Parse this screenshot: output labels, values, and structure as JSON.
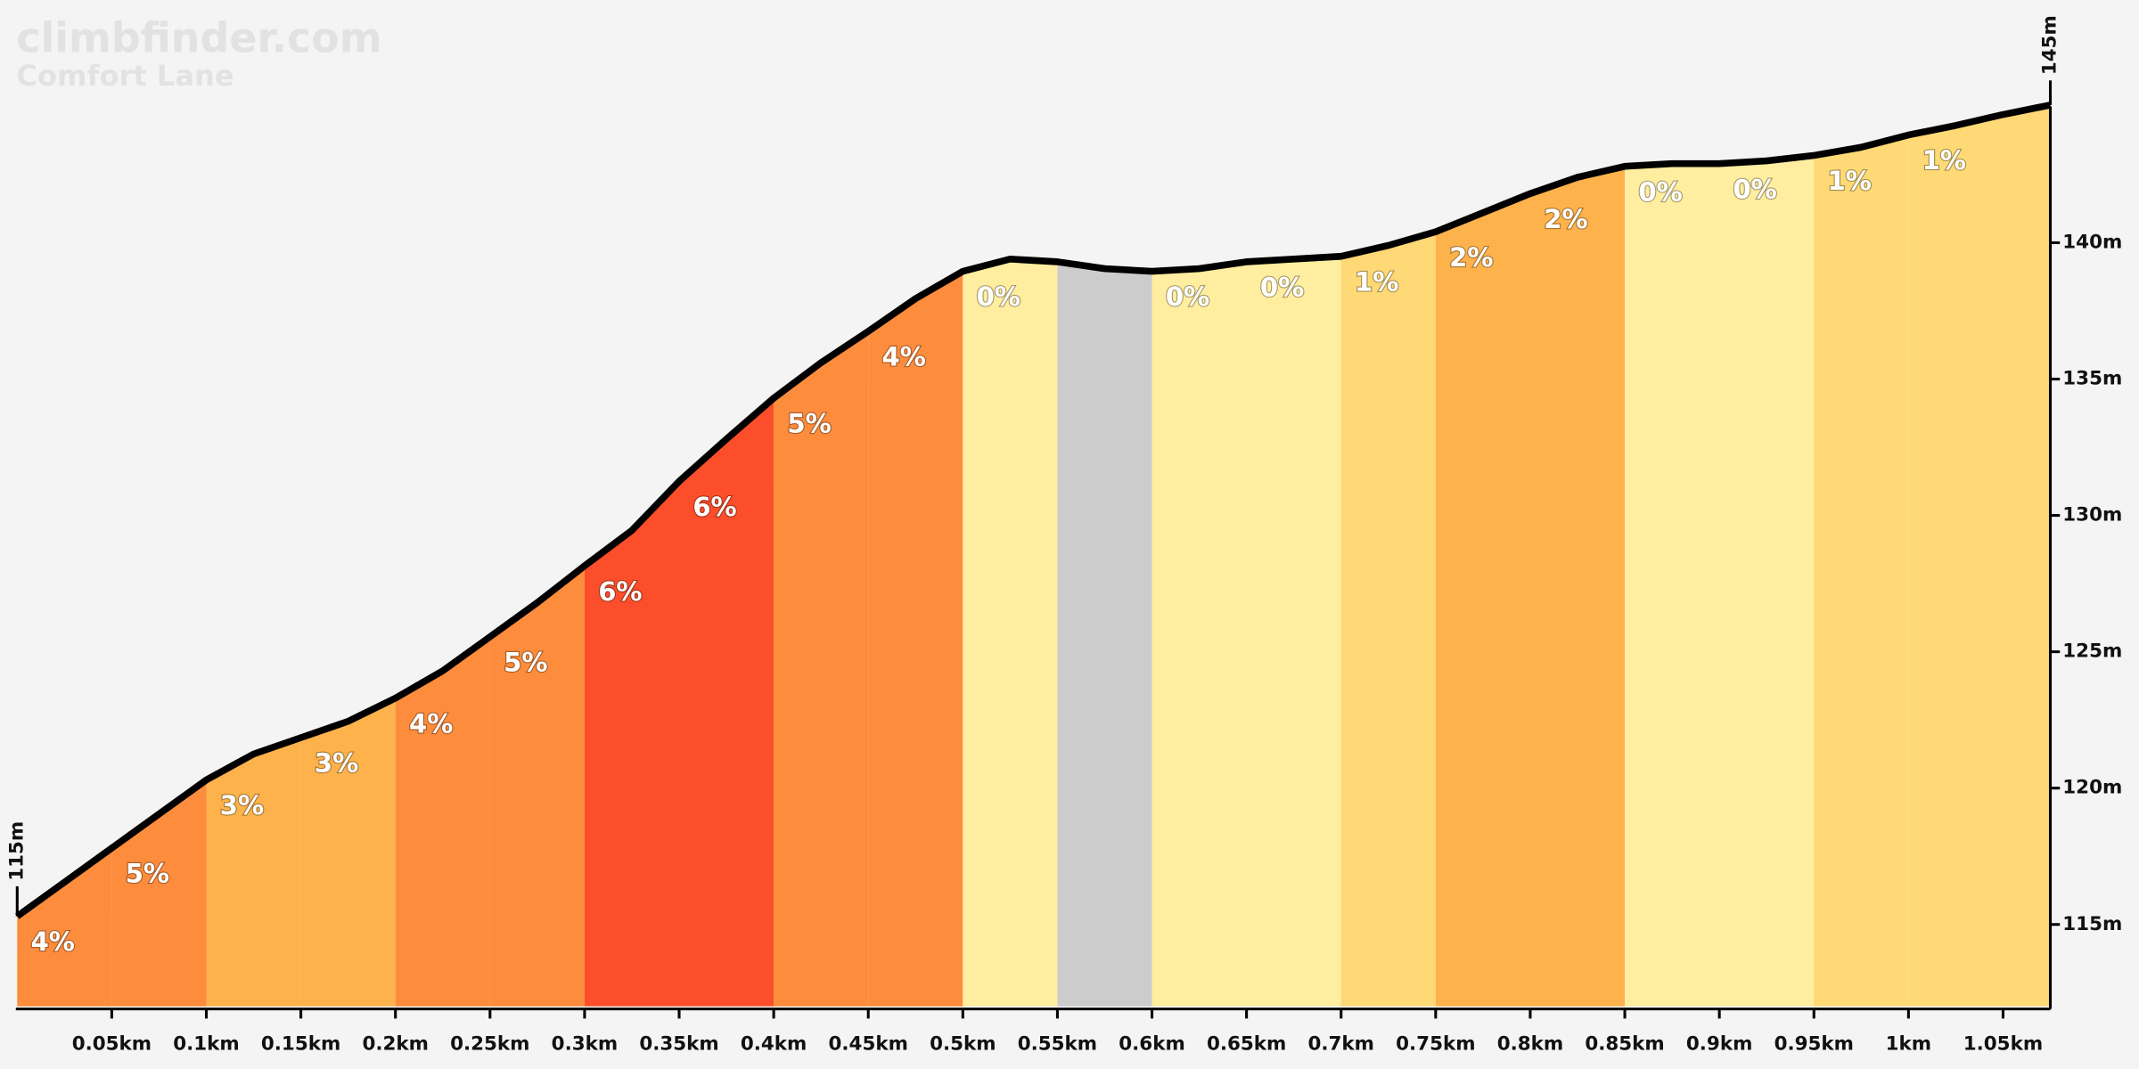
{
  "chart_data": {
    "type": "elevation-profile",
    "title": "climbfinder.com",
    "subtitle": "Comfort Lane",
    "x": [
      0,
      0.025,
      0.05,
      0.075,
      0.1,
      0.125,
      0.15,
      0.175,
      0.2,
      0.225,
      0.25,
      0.275,
      0.3,
      0.325,
      0.35,
      0.375,
      0.4,
      0.425,
      0.45,
      0.475,
      0.5,
      0.525,
      0.55,
      0.575,
      0.6,
      0.625,
      0.65,
      0.675,
      0.7,
      0.725,
      0.75,
      0.775,
      0.8,
      0.825,
      0.85,
      0.875,
      0.9,
      0.925,
      0.95,
      0.975,
      1.0,
      1.025,
      1.05,
      1.075
    ],
    "values": [
      115.3,
      116.55,
      117.8,
      119.05,
      120.3,
      121.25,
      121.85,
      122.45,
      123.3,
      124.3,
      125.55,
      126.8,
      128.15,
      129.45,
      131.25,
      132.8,
      134.3,
      135.6,
      136.75,
      137.95,
      138.95,
      139.4,
      139.3,
      139.05,
      138.95,
      139.05,
      139.3,
      139.4,
      139.5,
      139.9,
      140.4,
      141.1,
      141.8,
      142.4,
      142.8,
      142.9,
      142.9,
      143.0,
      143.2,
      143.5,
      143.95,
      144.3,
      144.7,
      145.05
    ],
    "start_label": "115m",
    "end_label": "145m",
    "gradients": {
      "bins": [
        0,
        0.05,
        0.1,
        0.15,
        0.2,
        0.25,
        0.3,
        0.35,
        0.4,
        0.45,
        0.5,
        0.55,
        0.6,
        0.65,
        0.7,
        0.75,
        0.8,
        0.85,
        0.9,
        0.95,
        1.0,
        1.075
      ],
      "values": [
        4,
        5,
        3,
        3,
        4,
        5,
        6,
        6,
        5,
        4,
        0,
        null,
        0,
        0,
        1,
        2,
        2,
        0,
        0,
        1,
        1
      ],
      "value_labels": [
        "4%",
        "5%",
        "3%",
        "3%",
        "4%",
        "5%",
        "6%",
        "6%",
        "5%",
        "4%",
        "0%",
        null,
        "0%",
        "0%",
        "1%",
        "2%",
        "2%",
        "0%",
        "0%",
        "1%",
        "1%"
      ],
      "colors": [
        "#fd8c3c",
        "#fd8c3c",
        "#feb24c",
        "#feb24c",
        "#fd8c3c",
        "#fd8c3c",
        "#fc4e2a",
        "#fc4e2a",
        "#fd8c3c",
        "#fd8c3c",
        "#ffeda0",
        "#cccccc",
        "#ffeda0",
        "#ffeda0",
        "#fed976",
        "#feb24c",
        "#feb24c",
        "#ffeda0",
        "#ffeda0",
        "#fed976",
        "#fed976"
      ]
    },
    "line_color": "#000000",
    "xlim": [
      0,
      1.075
    ],
    "ylim": [
      112,
      145
    ],
    "xticks": [
      {
        "value": 0.05,
        "label": "0.05km"
      },
      {
        "value": 0.1,
        "label": "0.1km"
      },
      {
        "value": 0.15,
        "label": "0.15km"
      },
      {
        "value": 0.2,
        "label": "0.2km"
      },
      {
        "value": 0.25,
        "label": "0.25km"
      },
      {
        "value": 0.3,
        "label": "0.3km"
      },
      {
        "value": 0.35,
        "label": "0.35km"
      },
      {
        "value": 0.4,
        "label": "0.4km"
      },
      {
        "value": 0.45,
        "label": "0.45km"
      },
      {
        "value": 0.5,
        "label": "0.5km"
      },
      {
        "value": 0.55,
        "label": "0.55km"
      },
      {
        "value": 0.6,
        "label": "0.6km"
      },
      {
        "value": 0.65,
        "label": "0.65km"
      },
      {
        "value": 0.7,
        "label": "0.7km"
      },
      {
        "value": 0.75,
        "label": "0.75km"
      },
      {
        "value": 0.8,
        "label": "0.8km"
      },
      {
        "value": 0.85,
        "label": "0.85km"
      },
      {
        "value": 0.9,
        "label": "0.9km"
      },
      {
        "value": 0.95,
        "label": "0.95km"
      },
      {
        "value": 1.0,
        "label": "1km"
      },
      {
        "value": 1.05,
        "label": "1.05km"
      }
    ],
    "yticks": [
      {
        "value": 115,
        "label": "115m"
      },
      {
        "value": 120,
        "label": "120m"
      },
      {
        "value": 125,
        "label": "125m"
      },
      {
        "value": 130,
        "label": "130m"
      },
      {
        "value": 135,
        "label": "135m"
      },
      {
        "value": 140,
        "label": "140m"
      }
    ]
  }
}
